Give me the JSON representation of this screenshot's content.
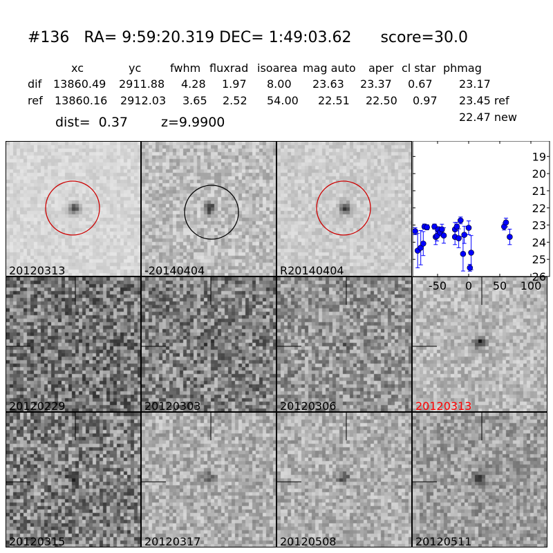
{
  "header": {
    "title": "#136   RA= 9:59:20.319 DEC= 1:49:03.62      score=30.0",
    "columns": [
      "xc",
      "yc",
      "fwhm",
      "fluxrad",
      "isoarea",
      "mag auto",
      "aper",
      "cl star",
      "phmag"
    ],
    "rows": [
      {
        "label": "dif",
        "values": [
          "13860.49",
          "2911.88",
          "4.28",
          "1.97",
          "8.00",
          "23.63",
          "23.37",
          "0.67",
          "23.17"
        ]
      },
      {
        "label": "ref",
        "values": [
          "13860.16",
          "2912.03",
          "3.65",
          "2.52",
          "54.00",
          "22.51",
          "22.50",
          "0.97",
          "23.45 ref"
        ]
      }
    ],
    "extra_phmag": "22.47 new",
    "dist": "dist=  0.37",
    "z": "z=9.9900"
  },
  "tiles": [
    {
      "label": "20120313",
      "circle": "#cc0000"
    },
    {
      "label": "-20140404",
      "circle": "#000000"
    },
    {
      "label": "R20140404",
      "circle": "#cc0000"
    },
    {
      "label": "20120229"
    },
    {
      "label": "20120303"
    },
    {
      "label": "20120306"
    },
    {
      "label": "20120313",
      "label_color": "#ff0000"
    },
    {
      "label": "20120315"
    },
    {
      "label": "20120317"
    },
    {
      "label": "20120508"
    },
    {
      "label": "20120511"
    }
  ],
  "chart_data": {
    "type": "scatter",
    "xlim": [
      -90,
      130
    ],
    "ylim": [
      26,
      18.1
    ],
    "y_inverted": true,
    "xticks": [
      -50,
      0,
      50,
      100
    ],
    "yticks": [
      19,
      20,
      21,
      22,
      23,
      24,
      25,
      26
    ],
    "color": "#0000ff",
    "points": [
      {
        "x": -86,
        "y": 23.36,
        "err": 0.2
      },
      {
        "x": -82,
        "y": 24.49,
        "err": 1.0
      },
      {
        "x": -77,
        "y": 24.32,
        "err": 1.0
      },
      {
        "x": -73,
        "y": 24.08,
        "err": 0.7
      },
      {
        "x": -71,
        "y": 23.09,
        "err": 0.15
      },
      {
        "x": -67,
        "y": 23.13,
        "err": 0.15
      },
      {
        "x": -55,
        "y": 23.09,
        "err": 0.15
      },
      {
        "x": -53,
        "y": 23.69,
        "err": 0.45
      },
      {
        "x": -51,
        "y": 23.63,
        "err": 0.3
      },
      {
        "x": -49,
        "y": 23.25,
        "err": 0.15
      },
      {
        "x": -46,
        "y": 23.43,
        "err": 0.2
      },
      {
        "x": -43,
        "y": 23.25,
        "err": 0.3
      },
      {
        "x": -40,
        "y": 23.61,
        "err": 0.45
      },
      {
        "x": -22,
        "y": 23.25,
        "err": 0.4
      },
      {
        "x": -22,
        "y": 23.69,
        "err": 0.45
      },
      {
        "x": -19,
        "y": 23.09,
        "err": 0.25
      },
      {
        "x": -16,
        "y": 23.77,
        "err": 0.55
      },
      {
        "x": -13,
        "y": 22.73,
        "err": 0.2
      },
      {
        "x": -9,
        "y": 24.68,
        "err": 1.0
      },
      {
        "x": -7,
        "y": 23.57,
        "err": 0.5
      },
      {
        "x": 0,
        "y": 23.16,
        "err": 0.4
      },
      {
        "x": 2,
        "y": 25.49,
        "err": 0.2
      },
      {
        "x": 4,
        "y": 24.61,
        "err": 1.0
      },
      {
        "x": 57,
        "y": 23.09,
        "err": 0.2
      },
      {
        "x": 60,
        "y": 22.85,
        "err": 0.25
      },
      {
        "x": 66,
        "y": 23.69,
        "err": 0.45
      }
    ]
  }
}
